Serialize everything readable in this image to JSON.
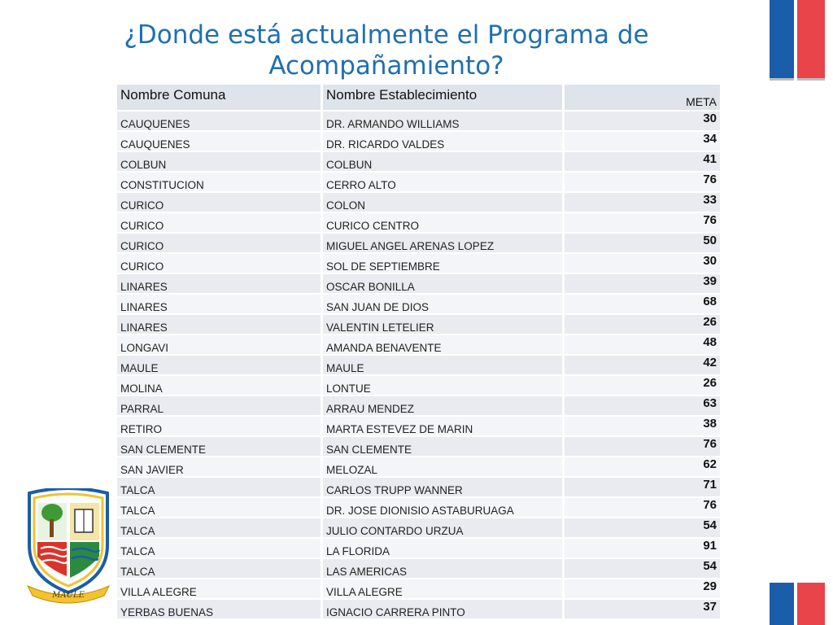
{
  "slide": {
    "title_line1": "¿Donde está actualmente el Programa de",
    "title_line2": "Acompañamiento?"
  },
  "table": {
    "headers": {
      "comuna": "Nombre Comuna",
      "establecimiento": "Nombre Establecimiento",
      "meta": "META"
    },
    "rows": [
      {
        "comuna": "CAUQUENES",
        "establecimiento": "DR. ARMANDO WILLIAMS",
        "meta": "30"
      },
      {
        "comuna": "CAUQUENES",
        "establecimiento": "DR. RICARDO VALDES",
        "meta": "34"
      },
      {
        "comuna": "COLBUN",
        "establecimiento": "COLBUN",
        "meta": "41"
      },
      {
        "comuna": "CONSTITUCION",
        "establecimiento": "CERRO ALTO",
        "meta": "76"
      },
      {
        "comuna": "CURICO",
        "establecimiento": "COLON",
        "meta": "33"
      },
      {
        "comuna": "CURICO",
        "establecimiento": "CURICO CENTRO",
        "meta": "76"
      },
      {
        "comuna": "CURICO",
        "establecimiento": "MIGUEL ANGEL ARENAS LOPEZ",
        "meta": "50"
      },
      {
        "comuna": "CURICO",
        "establecimiento": "SOL DE SEPTIEMBRE",
        "meta": "30"
      },
      {
        "comuna": "LINARES",
        "establecimiento": "OSCAR BONILLA",
        "meta": "39"
      },
      {
        "comuna": "LINARES",
        "establecimiento": "SAN JUAN DE DIOS",
        "meta": "68"
      },
      {
        "comuna": "LINARES",
        "establecimiento": "VALENTIN LETELIER",
        "meta": "26"
      },
      {
        "comuna": "LONGAVI",
        "establecimiento": "AMANDA BENAVENTE",
        "meta": "48"
      },
      {
        "comuna": "MAULE",
        "establecimiento": "MAULE",
        "meta": "42"
      },
      {
        "comuna": "MOLINA",
        "establecimiento": "LONTUE",
        "meta": "26"
      },
      {
        "comuna": "PARRAL",
        "establecimiento": "ARRAU MENDEZ",
        "meta": "63"
      },
      {
        "comuna": "RETIRO",
        "establecimiento": "MARTA ESTEVEZ DE MARIN",
        "meta": "38"
      },
      {
        "comuna": "SAN CLEMENTE",
        "establecimiento": "SAN CLEMENTE",
        "meta": "76"
      },
      {
        "comuna": "SAN JAVIER",
        "establecimiento": "MELOZAL",
        "meta": "62"
      },
      {
        "comuna": "TALCA",
        "establecimiento": "CARLOS TRUPP WANNER",
        "meta": "71"
      },
      {
        "comuna": "TALCA",
        "establecimiento": "DR. JOSE DIONISIO ASTABURUAGA",
        "meta": "76"
      },
      {
        "comuna": "TALCA",
        "establecimiento": "JULIO CONTARDO URZUA",
        "meta": "54"
      },
      {
        "comuna": "TALCA",
        "establecimiento": "LA FLORIDA",
        "meta": "91"
      },
      {
        "comuna": "TALCA",
        "establecimiento": "LAS AMERICAS",
        "meta": "54"
      },
      {
        "comuna": "VILLA ALEGRE",
        "establecimiento": "VILLA ALEGRE",
        "meta": "29"
      },
      {
        "comuna": "YERBAS BUENAS",
        "establecimiento": "IGNACIO CARRERA PINTO",
        "meta": "37"
      }
    ]
  },
  "crest": {
    "icon": "maule-crest-icon",
    "banner_text": "MAULE"
  },
  "colors": {
    "title": "#1f6fb2",
    "flag_blue": "#1a5da8",
    "flag_red": "#e8444a",
    "row_odd": "#e9ebf1",
    "row_even": "#f4f5f8",
    "header_bg": "#dfe3ea"
  }
}
